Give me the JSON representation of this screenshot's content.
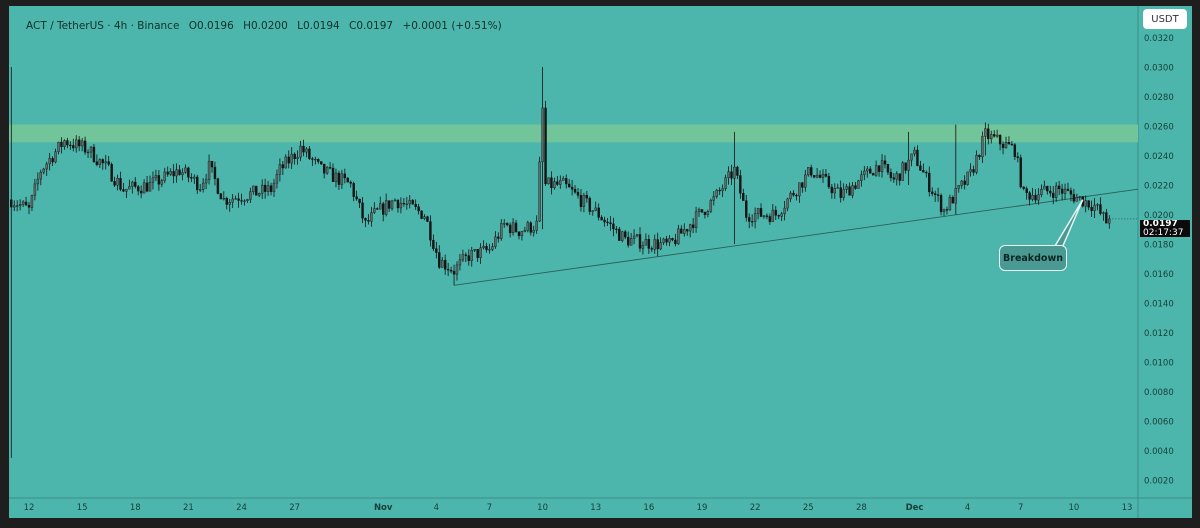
{
  "header": {
    "symbol": "ACT / TetherUS · 4h · Binance",
    "open": "O0.0196",
    "high": "H0.0200",
    "low": "L0.0194",
    "close": "C0.0197",
    "change": "+0.0001 (+0.51%)"
  },
  "currency_button": "USDT",
  "last_price": {
    "price": "0.0197",
    "countdown": "02:17:37"
  },
  "annotation": {
    "label": "Breakdown"
  },
  "colors": {
    "background": "#4db6ac",
    "zone": "#72c59a",
    "candle_down": "#151515",
    "candle_up": "#5d6e6b",
    "frame": "#1e1e1e"
  },
  "chart_data": {
    "type": "candlestick",
    "timeframe": "4h",
    "yaxis": {
      "ticks": [
        "0.0320",
        "0.0300",
        "0.0280",
        "0.0260",
        "0.0240",
        "0.0220",
        "0.0200",
        "0.0180",
        "0.0160",
        "0.0140",
        "0.0120",
        "0.0100",
        "0.0080",
        "0.0060",
        "0.0040",
        "0.0020"
      ],
      "ylim": [
        0.0005,
        0.033
      ],
      "position": "right"
    },
    "xaxis": {
      "ticks": [
        "12",
        "15",
        "18",
        "21",
        "24",
        "27",
        "Nov",
        "4",
        "7",
        "10",
        "13",
        "16",
        "19",
        "22",
        "25",
        "28",
        "Dec",
        "4",
        "7",
        "10",
        "13"
      ],
      "tick_dates": [
        "Oct 12",
        "Oct 15",
        "Oct 18",
        "Oct 21",
        "Oct 24",
        "Oct 27",
        "Nov 1",
        "Nov 4",
        "Nov 7",
        "Nov 10",
        "Nov 13",
        "Nov 16",
        "Nov 19",
        "Nov 22",
        "Nov 25",
        "Nov 28",
        "Dec 1",
        "Dec 4",
        "Dec 7",
        "Dec 10",
        "Dec 13"
      ]
    },
    "grid": false,
    "approx_close_path": [
      [
        "Oct 11 00:00",
        0.021
      ],
      [
        "Oct 12 00:00",
        0.0203
      ],
      [
        "Oct 12 16:00",
        0.023
      ],
      [
        "Oct 14 00:00",
        0.025
      ],
      [
        "Oct 15 08:00",
        0.0244
      ],
      [
        "Oct 16 12:00",
        0.023
      ],
      [
        "Oct 17 08:00",
        0.0217
      ],
      [
        "Oct 18 20:00",
        0.022
      ],
      [
        "Oct 20 12:00",
        0.023
      ],
      [
        "Oct 21 16:00",
        0.022
      ],
      [
        "Oct 22 04:00",
        0.0232
      ],
      [
        "Oct 23 00:00",
        0.021
      ],
      [
        "Oct 25 16:00",
        0.0217
      ],
      [
        "Oct 26 04:00",
        0.023
      ],
      [
        "Oct 27 08:00",
        0.0245
      ],
      [
        "Oct 28 12:00",
        0.023
      ],
      [
        "Oct 30 04:00",
        0.022
      ],
      [
        "Oct 31 00:00",
        0.0193
      ],
      [
        "Oct 31 12:00",
        0.02
      ],
      [
        "Nov 1 16:00",
        0.021
      ],
      [
        "Nov 3 08:00",
        0.02
      ],
      [
        "Nov 4 04:00",
        0.0169
      ],
      [
        "Nov 5 00:00",
        0.0162
      ],
      [
        "Nov 5 20:00",
        0.0172
      ],
      [
        "Nov 7 00:00",
        0.0176
      ],
      [
        "Nov 7 20:00",
        0.0193
      ],
      [
        "Nov 8 16:00",
        0.0189
      ],
      [
        "Nov 9 16:00",
        0.0193
      ],
      [
        "Nov 10 00:00",
        0.0271
      ],
      [
        "Nov 10 04:00",
        0.022
      ],
      [
        "Nov 11 04:00",
        0.022
      ],
      [
        "Nov 13 04:00",
        0.02
      ],
      [
        "Nov 14 16:00",
        0.0183
      ],
      [
        "Nov 17 04:00",
        0.0179
      ],
      [
        "Nov 18 20:00",
        0.02
      ],
      [
        "Nov 19 16:00",
        0.021
      ],
      [
        "Nov 20 20:00",
        0.023
      ],
      [
        "Nov 21 12:00",
        0.02
      ],
      [
        "Nov 23 04:00",
        0.02
      ],
      [
        "Nov 25 04:00",
        0.023
      ],
      [
        "Nov 26 20:00",
        0.0213
      ],
      [
        "Nov 29 00:00",
        0.0234
      ],
      [
        "Nov 29 20:00",
        0.0223
      ],
      [
        "Dec 1 00:00",
        0.024
      ],
      [
        "Dec 1 20:00",
        0.022
      ],
      [
        "Dec 2 16:00",
        0.0203
      ],
      [
        "Dec 4 04:00",
        0.0227
      ],
      [
        "Dec 5 00:00",
        0.0254
      ],
      [
        "Dec 6 16:00",
        0.0244
      ],
      [
        "Dec 7 04:00",
        0.0213
      ],
      [
        "Dec 9 04:00",
        0.0217
      ],
      [
        "Dec 11 04:00",
        0.0206
      ],
      [
        "Dec 11 20:00",
        0.0195
      ],
      [
        "Dec 12 00:00",
        0.0197
      ]
    ],
    "notable_wicks": [
      {
        "t": "Oct 11 00:00",
        "high": 0.03,
        "low": 0.0035
      },
      {
        "t": "Nov 5 00:00",
        "high": 0.0165,
        "low": 0.0152
      },
      {
        "t": "Nov 10 00:00",
        "high": 0.03,
        "low": 0.019
      },
      {
        "t": "Nov 20 20:00",
        "high": 0.0256,
        "low": 0.018
      },
      {
        "t": "Nov 30 16:00",
        "high": 0.0256,
        "low": 0.022
      },
      {
        "t": "Dec 3 08:00",
        "high": 0.0261,
        "low": 0.02
      },
      {
        "t": "Dec 5 00:00",
        "high": 0.0262,
        "low": 0.024
      }
    ],
    "resistance_zone": [
      0.0249,
      0.0261
    ],
    "trendline": [
      [
        "Nov 5 00:00",
        0.0152
      ],
      [
        "Dec 11 04:00",
        0.0213
      ]
    ],
    "annotation": {
      "text": "Breakdown",
      "points_to": [
        "Dec 10 12:00",
        0.021
      ]
    }
  }
}
